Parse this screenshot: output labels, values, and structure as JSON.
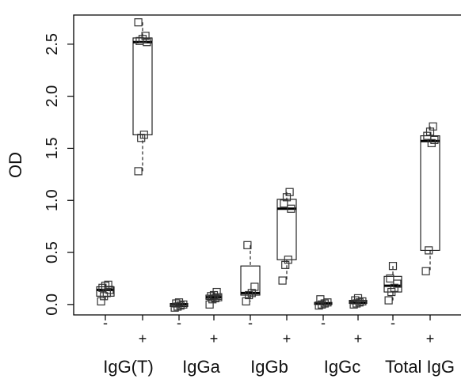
{
  "chart_data": {
    "type": "box",
    "ylabel": "OD",
    "ylim": [
      -0.1,
      2.78
    ],
    "yticks": [
      0.0,
      0.5,
      1.0,
      1.5,
      2.0,
      2.5
    ],
    "ytick_labels": [
      "0.0",
      "0.5",
      "1.0",
      "1.5",
      "2.0",
      "2.5"
    ],
    "groups": [
      {
        "label": "IgG(T)"
      },
      {
        "label": "IgGa"
      },
      {
        "label": "IgGb"
      },
      {
        "label": "IgGc"
      },
      {
        "label": "Total IgG"
      }
    ],
    "boxes": [
      {
        "group": "IgG(T)",
        "treatment": "-",
        "q1": 0.08,
        "median": 0.14,
        "q3": 0.17,
        "whisker_low": 0.03,
        "whisker_high": 0.19,
        "points": [
          0.03,
          0.08,
          0.11,
          0.14,
          0.16,
          0.18,
          0.19
        ]
      },
      {
        "group": "IgG(T)",
        "treatment": "+",
        "q1": 1.63,
        "median": 2.52,
        "q3": 2.56,
        "whisker_low": 1.28,
        "whisker_high": 2.71,
        "points": [
          1.28,
          1.6,
          1.63,
          2.52,
          2.53,
          2.55,
          2.58,
          2.71
        ]
      },
      {
        "group": "IgGa",
        "treatment": "-",
        "q1": -0.02,
        "median": 0.0,
        "q3": 0.01,
        "whisker_low": -0.03,
        "whisker_high": 0.02,
        "points": [
          -0.03,
          -0.02,
          -0.01,
          0.0,
          0.01,
          0.02
        ]
      },
      {
        "group": "IgGa",
        "treatment": "+",
        "q1": 0.05,
        "median": 0.07,
        "q3": 0.09,
        "whisker_low": 0.0,
        "whisker_high": 0.12,
        "points": [
          0.0,
          0.05,
          0.06,
          0.07,
          0.08,
          0.09,
          0.12
        ]
      },
      {
        "group": "IgGb",
        "treatment": "-",
        "q1": 0.09,
        "median": 0.11,
        "q3": 0.37,
        "whisker_low": 0.03,
        "whisker_high": 0.57,
        "points": [
          0.03,
          0.09,
          0.11,
          0.17,
          0.57
        ]
      },
      {
        "group": "IgGb",
        "treatment": "+",
        "q1": 0.43,
        "median": 0.92,
        "q3": 1.01,
        "whisker_low": 0.23,
        "whisker_high": 1.08,
        "points": [
          0.23,
          0.38,
          0.43,
          0.92,
          0.97,
          1.03,
          1.08
        ]
      },
      {
        "group": "IgGc",
        "treatment": "-",
        "q1": 0.0,
        "median": 0.01,
        "q3": 0.02,
        "whisker_low": -0.01,
        "whisker_high": 0.05,
        "points": [
          -0.01,
          0.0,
          0.01,
          0.02,
          0.05
        ]
      },
      {
        "group": "IgGc",
        "treatment": "+",
        "q1": 0.01,
        "median": 0.02,
        "q3": 0.04,
        "whisker_low": 0.0,
        "whisker_high": 0.06,
        "points": [
          0.0,
          0.01,
          0.02,
          0.03,
          0.04,
          0.06
        ]
      },
      {
        "group": "Total IgG",
        "treatment": "-",
        "q1": 0.12,
        "median": 0.18,
        "q3": 0.27,
        "whisker_low": 0.04,
        "whisker_high": 0.37,
        "points": [
          0.04,
          0.12,
          0.16,
          0.2,
          0.25,
          0.37
        ]
      },
      {
        "group": "Total IgG",
        "treatment": "+",
        "q1": 0.52,
        "median": 1.57,
        "q3": 1.62,
        "whisker_low": 0.32,
        "whisker_high": 1.71,
        "points": [
          0.32,
          0.52,
          1.55,
          1.58,
          1.62,
          1.66,
          1.71
        ]
      }
    ]
  }
}
